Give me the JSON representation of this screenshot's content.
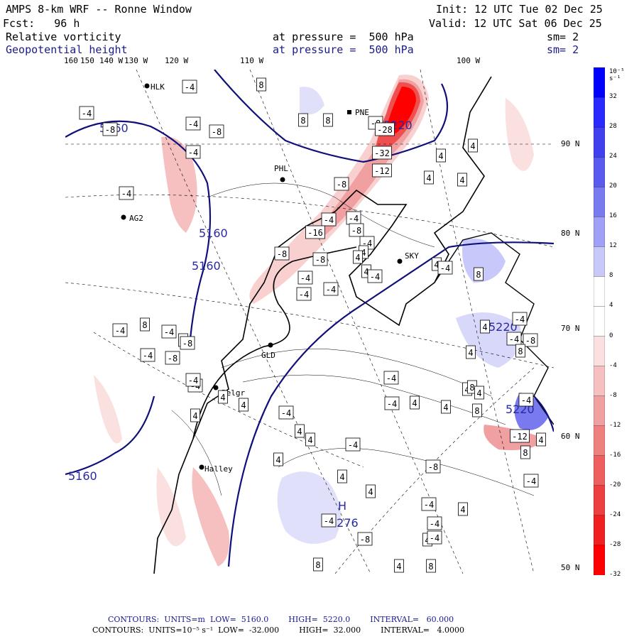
{
  "header": {
    "title": "AMPS 8-km WRF -- Ronne Window",
    "init": "Init: 12 UTC Tue 02 Dec 25",
    "fcst": "Fcst:   96 h",
    "valid": "Valid: 12 UTC Sat 06 Dec 25",
    "field1": {
      "name": "Relative vorticity",
      "level": "at pressure =  500 hPa",
      "sm": "sm= 2"
    },
    "field2": {
      "name": "Geopotential height",
      "level": "at pressure =  500 hPa",
      "sm": "sm= 2"
    }
  },
  "lon_labels": [
    "160",
    "150",
    "140 W",
    "130 W",
    "120 W",
    "110 W",
    "100 W"
  ],
  "lat_labels": [
    "90 N",
    "80 N",
    "70 N",
    "60 N",
    "50 N"
  ],
  "colorbar": {
    "unit": "10⁻⁵ s⁻¹",
    "ticks": [
      "32",
      "28",
      "24",
      "20",
      "16",
      "12",
      "8",
      "4",
      "0",
      "-4",
      "-8",
      "-12",
      "-16",
      "-20",
      "-24",
      "-28",
      "-32"
    ],
    "colors": [
      "#0000ff",
      "#2a2aff",
      "#4040ee",
      "#5a5aee",
      "#7a7af0",
      "#a0a0f6",
      "#c8c8fa",
      "#ffffff",
      "#ffffff",
      "#fbe0e0",
      "#f6c0c0",
      "#f0a0a0",
      "#ee8080",
      "#ee6060",
      "#ee4040",
      "#f02020",
      "#ff0000"
    ]
  },
  "map": {
    "stations": [
      "HLK",
      "PNE",
      "PHL",
      "AG2",
      "SKY",
      "GLD",
      "Belgr",
      "Halley"
    ],
    "height_labels": [
      "5160",
      "5160",
      "5160",
      "5160",
      "5220",
      "5220",
      "5220",
      "5276"
    ],
    "H_label": "H",
    "H_value": "5276",
    "vort_labels": [
      "-4",
      "-8",
      "-4",
      "-8",
      "-4",
      "-4",
      "8",
      "8",
      "8",
      "-8",
      "-28",
      "-32",
      "-12",
      "4",
      "4",
      "4",
      "4",
      "-8",
      "-4",
      "-4",
      "-8",
      "-16",
      "-4",
      "4",
      "-8",
      "-8",
      "4",
      "4",
      "-4",
      "-4",
      "-4",
      "-4",
      "4",
      "-4",
      "-4",
      "8",
      "-4",
      "4",
      "-4",
      "-8",
      "-8",
      "4",
      "-4",
      "-4",
      "4",
      "4",
      "-4",
      "4",
      "-4",
      "4",
      "8",
      "8",
      "-4",
      "-4",
      "-8",
      "-4",
      "-12",
      "8",
      "8",
      "-4",
      "4",
      "4",
      "4",
      "8",
      "4",
      "-4",
      "-4",
      "4",
      "4",
      "8",
      "4",
      "-4",
      "-8",
      "4",
      "8",
      "4",
      "-4",
      "-4",
      "-8",
      "4",
      "4",
      "-4",
      "-4",
      "4",
      "4"
    ]
  },
  "footer": {
    "line1": "CONTOURS:  UNITS=m  LOW=  5160.0        HIGH=  5220.0        INTERVAL=   60.000",
    "line2": "CONTOURS:  UNITS=10⁻⁵ s⁻¹  LOW=  -32.000        HIGH=  32.000        INTERVAL=   4.0000"
  }
}
